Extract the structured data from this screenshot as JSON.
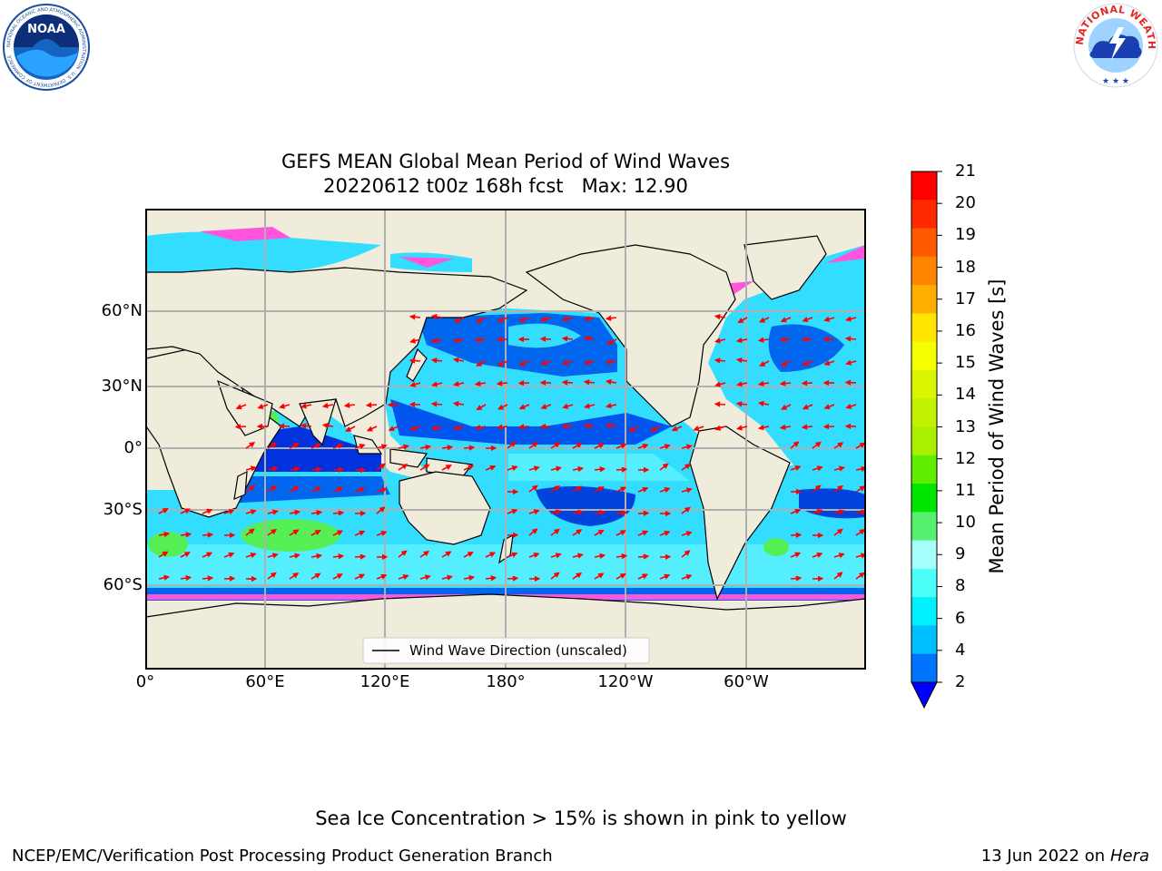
{
  "header": {
    "title_line1": "GEFS MEAN Global Mean Period of Wind Waves",
    "title_line2": "20220612 t00z 168h fcst   Max: 12.90",
    "logo_left_text": "NOAA",
    "logo_left_ring": "NATIONAL OCEANIC AND ATMOSPHERIC ADMINISTRATION · U.S. DEPARTMENT OF COMMERCE",
    "logo_right_ring": "NATIONAL WEATHER SERVICE"
  },
  "map": {
    "lat_ticks": [
      "60°N",
      "30°N",
      "0°",
      "30°S",
      "60°S"
    ],
    "lon_ticks": [
      "0°",
      "60°E",
      "120°E",
      "180°",
      "120°W",
      "60°W"
    ],
    "legend_label": "Wind Wave Direction (unscaled)",
    "colors": {
      "land": "#efecdc",
      "ocean_mid": "#33ddff",
      "ocean_deep": "#0055ee",
      "ice": "#ff55dd",
      "arrow": "#ff0000"
    }
  },
  "colorbar": {
    "label": "Mean Period of Wind Waves [s]",
    "ticks": [
      "21",
      "20",
      "19",
      "18",
      "17",
      "16",
      "15",
      "14",
      "13",
      "12",
      "11",
      "10",
      "9",
      "8",
      "6",
      "4",
      "2"
    ],
    "colors": [
      "#ff0000",
      "#ff2a00",
      "#ff5a00",
      "#ff8400",
      "#ffae00",
      "#ffe600",
      "#f4ff00",
      "#daf500",
      "#c2f200",
      "#aaee00",
      "#60ee00",
      "#00e600",
      "#55f06e",
      "#a5fffa",
      "#4cfff8",
      "#00f0ff",
      "#00bfff",
      "#0073ff"
    ],
    "extend_color": "#0000ff"
  },
  "footer": {
    "note": "Sea Ice Concentration > 15% is shown in pink to yellow",
    "left": "NCEP/EMC/Verification Post Processing Product Generation Branch",
    "date": "13 Jun 2022",
    "on": "on",
    "host": "Hera"
  }
}
